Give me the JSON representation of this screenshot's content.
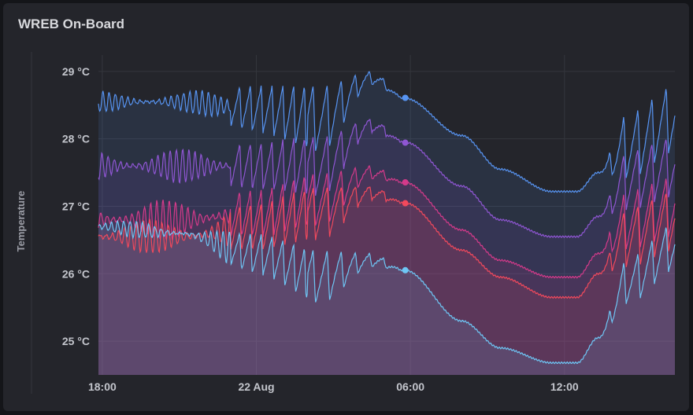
{
  "panel": {
    "title": "WREB On-Board"
  },
  "chart_data": {
    "type": "area",
    "title": "WREB On-Board",
    "ylabel": "Temperature",
    "xlabel": "",
    "y_unit": "°C",
    "ylim": [
      24.5,
      29.15
    ],
    "yticks": [
      {
        "value": 25,
        "label": "25 °C"
      },
      {
        "value": 26,
        "label": "26 °C"
      },
      {
        "value": 27,
        "label": "27 °C"
      },
      {
        "value": 28,
        "label": "28 °C"
      },
      {
        "value": 29,
        "label": "29 °C"
      }
    ],
    "x_unit": "hours since 21 Aug 17:00",
    "xlim": [
      0.85,
      23.3
    ],
    "xticks": [
      {
        "value": 1,
        "label": "18:00"
      },
      {
        "value": 7,
        "label": "22 Aug"
      },
      {
        "value": 13,
        "label": "06:00"
      },
      {
        "value": 19,
        "label": "12:00"
      }
    ],
    "grid": true,
    "legend": "none",
    "marker_x": 12.8,
    "series": [
      {
        "color": "#5794f2",
        "x": [
          0.85,
          4,
          7,
          9.5,
          11.5,
          12.8,
          15,
          16.5,
          18.5,
          19.5,
          20.3,
          21.5,
          23.3
        ],
        "base": [
          28.55,
          28.55,
          28.45,
          28.3,
          28.9,
          28.6,
          28.05,
          27.55,
          27.22,
          27.22,
          27.5,
          27.9,
          28.3
        ],
        "amp": [
          0.15,
          0.15,
          0.35,
          0.5,
          0.1,
          0,
          0,
          0,
          0,
          0,
          0,
          0.5,
          0.5
        ]
      },
      {
        "color": "#8f56d3",
        "x": [
          0.85,
          4,
          7,
          9.5,
          11.5,
          12.8,
          15,
          16.5,
          18.5,
          19.5,
          20.3,
          21.5,
          23.3
        ],
        "base": [
          27.6,
          27.6,
          27.6,
          27.6,
          28.2,
          27.95,
          27.3,
          26.8,
          26.55,
          26.55,
          26.85,
          27.4,
          27.6
        ],
        "amp": [
          0.25,
          0.25,
          0.35,
          0.45,
          0.1,
          0,
          0,
          0,
          0,
          0,
          0,
          0.45,
          0.45
        ]
      },
      {
        "color": "#d43a8a",
        "x": [
          0.85,
          4,
          7,
          9.5,
          11.5,
          12.8,
          15,
          16.5,
          18.5,
          19.5,
          20.3,
          21.5,
          23.3
        ],
        "base": [
          26.8,
          26.8,
          26.9,
          27.1,
          27.5,
          27.35,
          26.65,
          26.2,
          25.95,
          25.95,
          26.3,
          26.8,
          27.0
        ],
        "amp": [
          0.3,
          0.3,
          0.35,
          0.4,
          0.1,
          0,
          0,
          0,
          0,
          0,
          0,
          0.45,
          0.45
        ]
      },
      {
        "color": "#f2495c",
        "x": [
          0.85,
          4,
          7,
          9.5,
          11.5,
          12.8,
          15,
          16.5,
          18.5,
          19.5,
          20.3,
          21.5,
          23.3
        ],
        "base": [
          26.55,
          26.55,
          26.7,
          26.9,
          27.2,
          27.05,
          26.35,
          25.95,
          25.65,
          25.65,
          26.0,
          26.55,
          26.8
        ],
        "amp": [
          0.25,
          0.25,
          0.35,
          0.4,
          0.1,
          0,
          0,
          0,
          0,
          0,
          0,
          0.45,
          0.45
        ]
      },
      {
        "color": "#6ec6f5",
        "x": [
          0.85,
          4,
          7,
          9.5,
          11.5,
          12.8,
          15,
          16.5,
          18.5,
          19.5,
          20.3,
          21.5,
          23.3
        ],
        "base": [
          26.7,
          26.6,
          26.3,
          25.95,
          26.2,
          26.05,
          25.3,
          24.9,
          24.68,
          24.68,
          25.05,
          25.9,
          26.4
        ],
        "amp": [
          0.12,
          0.12,
          0.3,
          0.4,
          0.1,
          0,
          0,
          0,
          0,
          0,
          0,
          0.35,
          0.35
        ]
      }
    ]
  }
}
